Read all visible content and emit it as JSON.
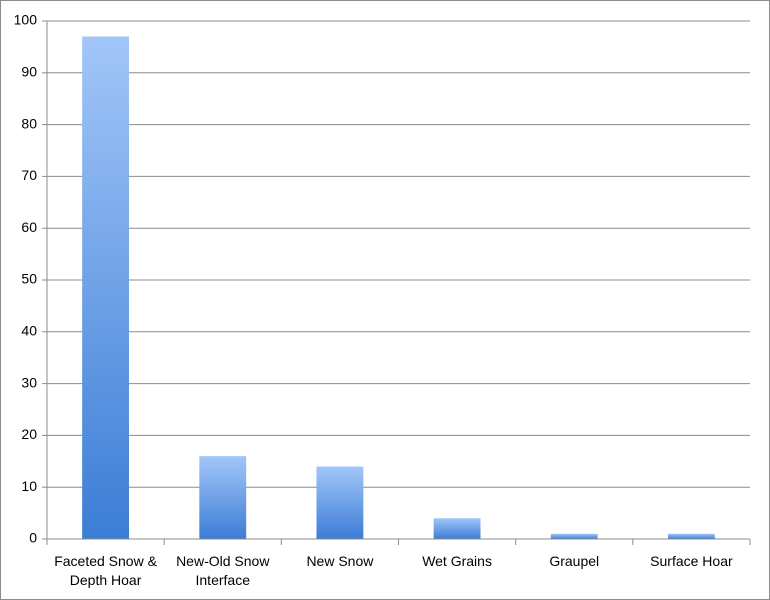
{
  "chart_data": {
    "type": "bar",
    "categories": [
      "Faceted Snow & Depth Hoar",
      "New-Old Snow Interface",
      "New Snow",
      "Wet Grains",
      "Graupel",
      "Surface Hoar"
    ],
    "values": [
      97,
      16,
      14,
      4,
      1,
      1
    ],
    "color": "#4f8ee3",
    "ylim": [
      0,
      100
    ],
    "yticks": [
      0,
      10,
      20,
      30,
      40,
      50,
      60,
      70,
      80,
      90,
      100
    ],
    "grid": true
  }
}
